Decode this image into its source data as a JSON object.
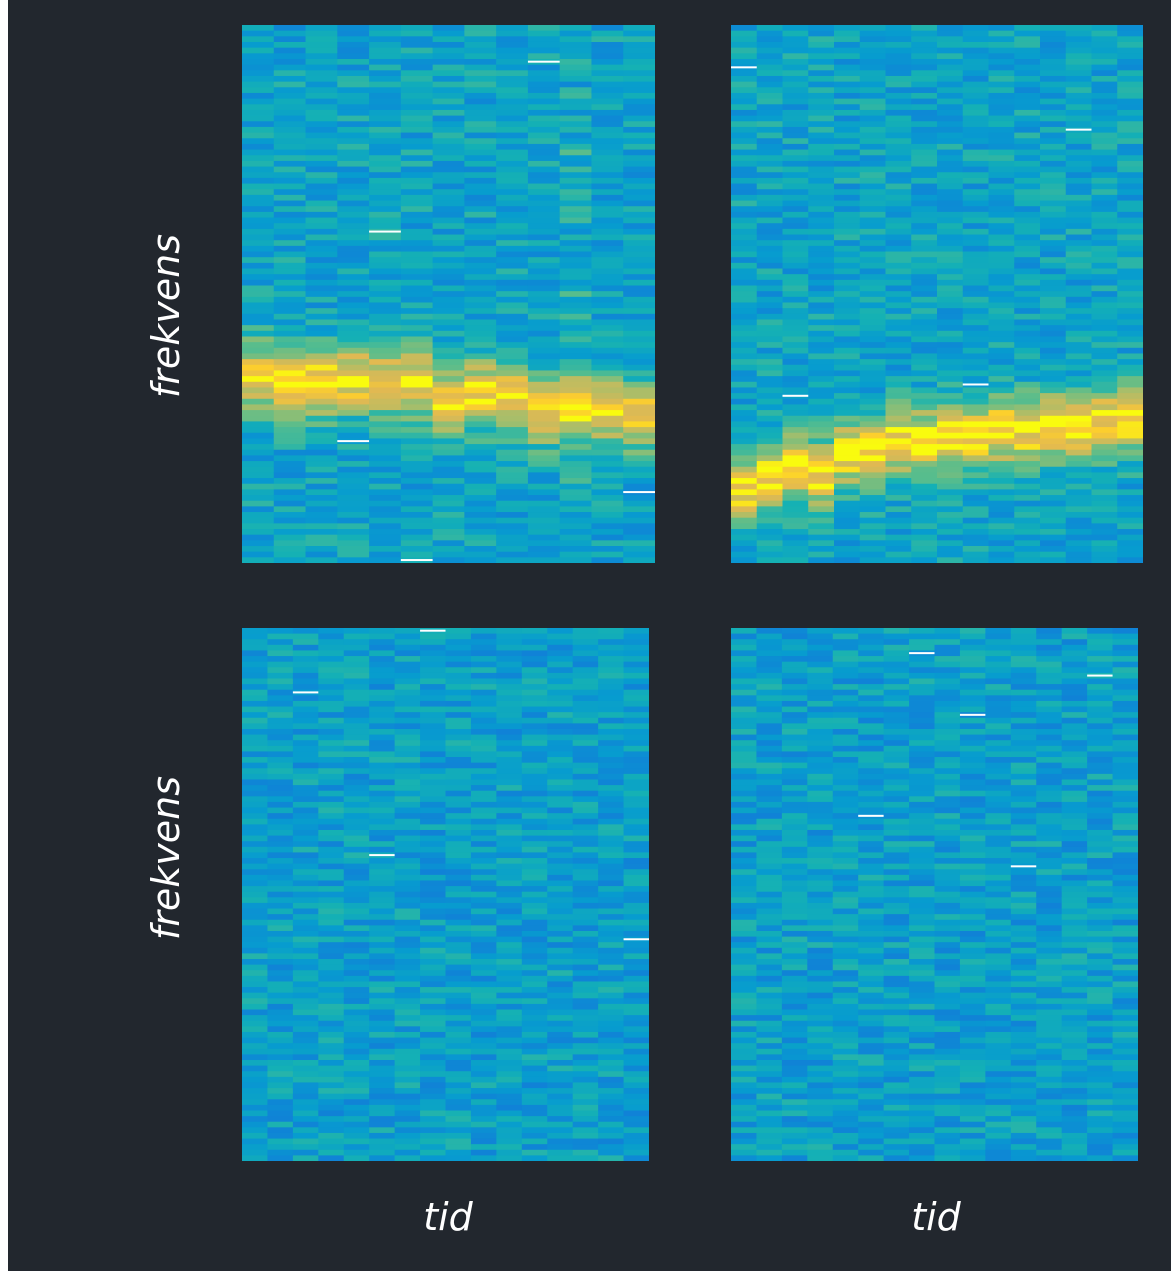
{
  "chart_data": [
    {
      "type": "heatmap",
      "panel": "top-left",
      "xlabel": "",
      "ylabel": "frekvens",
      "grid": false,
      "colormap": "parula",
      "background": "#22272e",
      "time_columns": 13,
      "frequency_rows": 95,
      "band_center_frac_from_top": [
        0.65,
        0.66,
        0.66,
        0.65,
        0.66,
        0.66,
        0.7,
        0.68,
        0.69,
        0.71,
        0.7,
        0.71,
        0.72
      ],
      "band_peak_intensity": 0.95,
      "background_intensity": 0.42,
      "column_highlight": {
        "column": 10,
        "intensity": 0.6
      }
    },
    {
      "type": "heatmap",
      "panel": "top-right",
      "xlabel": "",
      "ylabel": "",
      "grid": false,
      "colormap": "parula",
      "time_columns": 16,
      "frequency_rows": 95,
      "band_center_frac_from_top": [
        0.86,
        0.84,
        0.82,
        0.83,
        0.79,
        0.79,
        0.77,
        0.77,
        0.76,
        0.76,
        0.75,
        0.75,
        0.74,
        0.74,
        0.73,
        0.73
      ],
      "band_peak_intensity": 0.95,
      "background_intensity": 0.42
    },
    {
      "type": "heatmap",
      "panel": "bottom-left",
      "xlabel": "tid",
      "ylabel": "frekvens",
      "grid": false,
      "colormap": "parula",
      "time_columns": 16,
      "frequency_rows": 95,
      "band_center_frac_from_top": [],
      "background_intensity": 0.4
    },
    {
      "type": "heatmap",
      "panel": "bottom-right",
      "xlabel": "tid",
      "ylabel": "",
      "grid": false,
      "colormap": "parula",
      "time_columns": 16,
      "frequency_rows": 95,
      "band_center_frac_from_top": [],
      "background_intensity": 0.4
    }
  ]
}
